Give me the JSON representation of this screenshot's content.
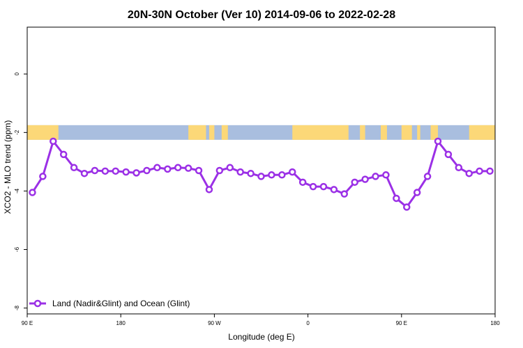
{
  "chart_data": {
    "type": "line",
    "title": "20N-30N October (Ver 10)   2014-09-06 to 2022-02-28",
    "xlabel": "Longitude (deg E)",
    "ylabel": "XCO2 - MLO trend (ppm)",
    "xlim": [
      90,
      540
    ],
    "ylim": [
      -8.2,
      1.6
    ],
    "x_ticks": [
      {
        "value": 90,
        "label": "90 E"
      },
      {
        "value": 180,
        "label": "180"
      },
      {
        "value": 270,
        "label": "90 W"
      },
      {
        "value": 360,
        "label": "0"
      },
      {
        "value": 450,
        "label": "90 E"
      },
      {
        "value": 540,
        "label": "180"
      }
    ],
    "y_ticks": [
      {
        "value": 0,
        "label": "0"
      },
      {
        "value": -2,
        "label": "-2"
      },
      {
        "value": -4,
        "label": "-4"
      },
      {
        "value": -6,
        "label": "-6"
      },
      {
        "value": -8,
        "label": "-8"
      }
    ],
    "grid": false,
    "legend_position": "bottom-left",
    "map_strip": {
      "y_range": [
        -1.75,
        -2.25
      ],
      "ocean_color": "#a9bedf",
      "land_color": "#fcd878",
      "land_spans": [
        [
          90,
          120
        ],
        [
          245,
          262
        ],
        [
          265,
          270
        ],
        [
          277,
          283
        ],
        [
          345,
          399
        ],
        [
          410,
          415
        ],
        [
          430,
          436
        ],
        [
          450,
          460
        ],
        [
          465,
          468
        ],
        [
          478,
          480
        ],
        [
          479,
          485
        ],
        [
          515,
          570
        ]
      ]
    },
    "series": [
      {
        "name": "Land (Nadir&Glint) and Ocean (Glint)",
        "color": "#9b30e6",
        "x": [
          95,
          105,
          115,
          125,
          135,
          145,
          155,
          165,
          175,
          185,
          195,
          205,
          215,
          225,
          235,
          245,
          255,
          265,
          275,
          285,
          295,
          305,
          315,
          325,
          335,
          345,
          355,
          365,
          375,
          385,
          395,
          405,
          415,
          425,
          435,
          445,
          455,
          465,
          475,
          485,
          495,
          505,
          515,
          525,
          535
        ],
        "values": [
          -4.05,
          -3.5,
          -2.3,
          -2.75,
          -3.2,
          -3.4,
          -3.3,
          -3.32,
          -3.32,
          -3.35,
          -3.38,
          -3.3,
          -3.2,
          -3.25,
          -3.2,
          -3.22,
          -3.3,
          -3.95,
          -3.3,
          -3.2,
          -3.35,
          -3.4,
          -3.5,
          -3.45,
          -3.45,
          -3.35,
          -3.7,
          -3.85,
          -3.85,
          -3.95,
          -4.1,
          -3.7,
          -3.6,
          -3.5,
          -3.45,
          -4.25,
          -4.55,
          -4.05,
          -3.5,
          -2.3,
          -2.75,
          -3.2,
          -3.4,
          -3.32,
          -3.32
        ]
      }
    ]
  }
}
